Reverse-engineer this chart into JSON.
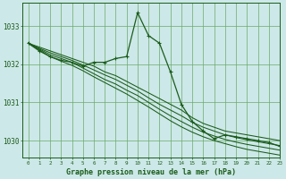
{
  "background_color": "#cde8e8",
  "plot_bg_color": "#cde8e8",
  "grid_color": "#6aaa6a",
  "line_color": "#1a5c1a",
  "title": "Graphe pression niveau de la mer (hPa)",
  "xlim": [
    -0.5,
    23
  ],
  "ylim": [
    1029.55,
    1033.6
  ],
  "yticks": [
    1030,
    1031,
    1032,
    1033
  ],
  "xticks": [
    0,
    1,
    2,
    3,
    4,
    5,
    6,
    7,
    8,
    9,
    10,
    11,
    12,
    13,
    14,
    15,
    16,
    17,
    18,
    19,
    20,
    21,
    22,
    23
  ],
  "series": [
    [
      1032.55,
      1032.45,
      1032.35,
      1032.25,
      1032.15,
      1032.05,
      1031.95,
      1031.8,
      1031.7,
      1031.55,
      1031.4,
      1031.25,
      1031.1,
      1030.95,
      1030.8,
      1030.6,
      1030.45,
      1030.35,
      1030.25,
      1030.2,
      1030.15,
      1030.1,
      1030.05,
      1030.0
    ],
    [
      1032.55,
      1032.42,
      1032.3,
      1032.2,
      1032.1,
      1031.98,
      1031.85,
      1031.72,
      1031.6,
      1031.45,
      1031.3,
      1031.12,
      1030.95,
      1030.8,
      1030.65,
      1030.48,
      1030.35,
      1030.25,
      1030.15,
      1030.08,
      1030.02,
      1029.97,
      1029.92,
      1029.87
    ],
    [
      1032.55,
      1032.4,
      1032.25,
      1032.15,
      1032.05,
      1031.9,
      1031.75,
      1031.6,
      1031.48,
      1031.32,
      1031.18,
      1031.0,
      1030.82,
      1030.65,
      1030.5,
      1030.35,
      1030.22,
      1030.12,
      1030.03,
      1029.96,
      1029.9,
      1029.85,
      1029.8,
      1029.75
    ],
    [
      1032.55,
      1032.38,
      1032.2,
      1032.08,
      1031.97,
      1031.83,
      1031.67,
      1031.52,
      1031.37,
      1031.22,
      1031.05,
      1030.88,
      1030.7,
      1030.52,
      1030.36,
      1030.22,
      1030.1,
      1030.0,
      1029.92,
      1029.84,
      1029.77,
      1029.72,
      1029.67,
      1029.62
    ]
  ],
  "highlight_x": [
    0,
    1,
    2,
    3,
    4,
    5,
    6,
    7,
    8,
    9,
    10,
    11,
    12,
    13,
    14,
    15,
    16,
    17,
    18,
    19,
    20,
    21,
    22,
    23
  ],
  "highlight_y": [
    1032.55,
    1032.35,
    1032.2,
    1032.1,
    1032.05,
    1031.95,
    1032.05,
    1032.05,
    1032.15,
    1032.2,
    1033.35,
    1032.75,
    1032.55,
    1031.8,
    1030.95,
    1030.5,
    1030.25,
    1030.05,
    1030.15,
    1030.1,
    1030.05,
    1030.0,
    1029.95,
    1029.85
  ]
}
